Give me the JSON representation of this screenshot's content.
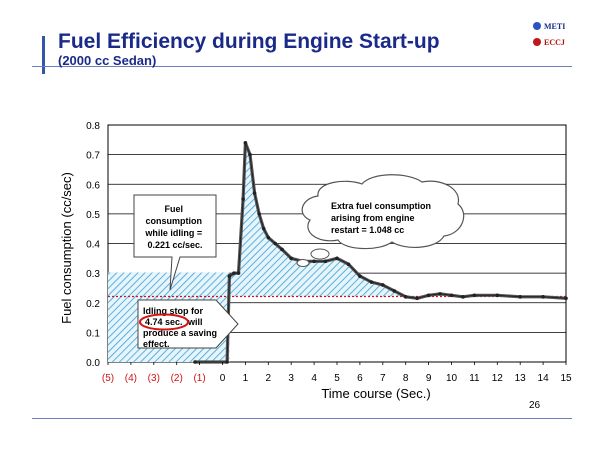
{
  "slide": {
    "title": "Fuel Efficiency during Engine Start-up",
    "subtitle": "(2000 cc Sedan)",
    "logo_top": "METI",
    "logo_bottom": "ECCJ",
    "page_number": "26"
  },
  "chart_data": {
    "type": "line",
    "xlabel": "Time course (Sec.)",
    "ylabel": "Fuel consumption (cc/sec)",
    "ylim": [
      0,
      0.8
    ],
    "xlim": [
      -5,
      15
    ],
    "yticks": [
      "0.0",
      "0.1",
      "0.2",
      "0.3",
      "0.4",
      "0.5",
      "0.6",
      "0.7",
      "0.8"
    ],
    "xticks": [
      {
        "x": -5,
        "label": "(5)"
      },
      {
        "x": -4,
        "label": "(4)"
      },
      {
        "x": -3,
        "label": "(3)"
      },
      {
        "x": -2,
        "label": "(2)"
      },
      {
        "x": -1,
        "label": "(1)"
      },
      {
        "x": 0,
        "label": "0"
      },
      {
        "x": 1,
        "label": "1"
      },
      {
        "x": 2,
        "label": "2"
      },
      {
        "x": 3,
        "label": "3"
      },
      {
        "x": 4,
        "label": "4"
      },
      {
        "x": 5,
        "label": "5"
      },
      {
        "x": 6,
        "label": "6"
      },
      {
        "x": 7,
        "label": "7"
      },
      {
        "x": 8,
        "label": "8"
      },
      {
        "x": 9,
        "label": "9"
      },
      {
        "x": 10,
        "label": "10"
      },
      {
        "x": 11,
        "label": "11"
      },
      {
        "x": 12,
        "label": "12"
      },
      {
        "x": 13,
        "label": "13"
      },
      {
        "x": 14,
        "label": "14"
      },
      {
        "x": 15,
        "label": "15"
      }
    ],
    "grid": true,
    "idling_reference": 0.221,
    "series": [
      {
        "x": [
          -1.2,
          0.2,
          0.3,
          0.5,
          0.7,
          0.9,
          1.0,
          1.2,
          1.4,
          1.6,
          1.8,
          2.0,
          2.3,
          2.6,
          3.0,
          3.5,
          4.0,
          4.5,
          5.0,
          5.5,
          6.0,
          6.5,
          7.0,
          7.5,
          8.0,
          8.5,
          9.0,
          9.5,
          10.0,
          10.5,
          11.0,
          12.0,
          13.0,
          14.0,
          15.0
        ],
        "y": [
          0.0,
          0.0,
          0.29,
          0.3,
          0.3,
          0.55,
          0.74,
          0.7,
          0.57,
          0.5,
          0.45,
          0.42,
          0.4,
          0.38,
          0.35,
          0.34,
          0.34,
          0.34,
          0.35,
          0.33,
          0.29,
          0.27,
          0.26,
          0.24,
          0.22,
          0.215,
          0.225,
          0.23,
          0.225,
          0.22,
          0.225,
          0.225,
          0.22,
          0.22,
          0.215
        ]
      }
    ],
    "annotations": {
      "idling_callout": "Fuel consumption while idling = 0.221 cc/sec.",
      "restart_callout": "Extra fuel consumption arising from engine restart = 1.048 cc",
      "stop_pre": "Idling stop for",
      "stop_highlight": "4.74 sec.",
      "stop_mid": "will",
      "stop_post": "produce a saving effect."
    }
  }
}
